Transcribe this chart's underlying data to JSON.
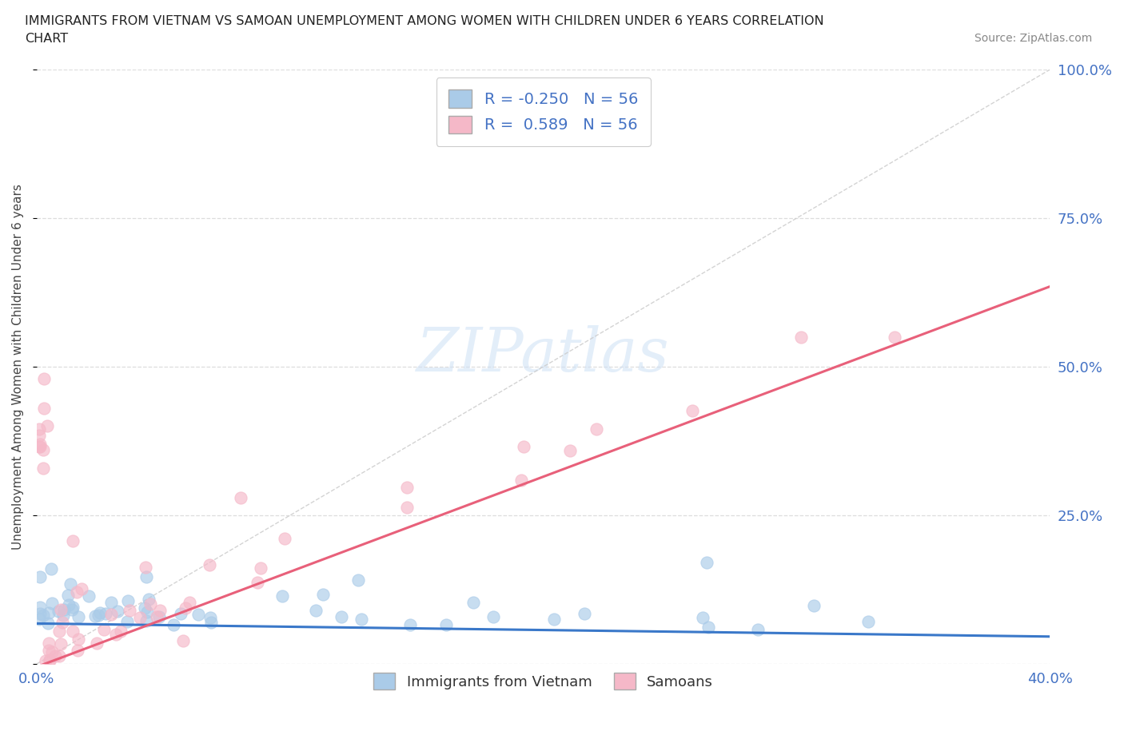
{
  "title_line1": "IMMIGRANTS FROM VIETNAM VS SAMOAN UNEMPLOYMENT AMONG WOMEN WITH CHILDREN UNDER 6 YEARS CORRELATION",
  "title_line2": "CHART",
  "source": "Source: ZipAtlas.com",
  "ylabel": "Unemployment Among Women with Children Under 6 years",
  "xlim": [
    0.0,
    0.4
  ],
  "ylim": [
    0.0,
    1.0
  ],
  "yticks": [
    0.0,
    0.25,
    0.5,
    0.75,
    1.0
  ],
  "yticklabels_right": [
    "",
    "25.0%",
    "50.0%",
    "75.0%",
    "100.0%"
  ],
  "xtick_labels": [
    "0.0%",
    "",
    "",
    "",
    "40.0%"
  ],
  "xtick_vals": [
    0.0,
    0.1,
    0.2,
    0.3,
    0.4
  ],
  "R_vietnam": -0.25,
  "R_samoan": 0.589,
  "N_vietnam": 56,
  "N_samoan": 56,
  "color_vietnam": "#aacbe8",
  "color_samoan": "#f5b8c8",
  "color_vietnam_line": "#3a78c9",
  "color_samoan_line": "#e8607a",
  "color_diag_line": "#cccccc",
  "watermark": "ZIPatlas",
  "background_color": "#ffffff",
  "grid_color": "#dddddd",
  "axis_label_color": "#4472c4",
  "title_color": "#222222",
  "source_color": "#888888",
  "slope_vietnam": -0.055,
  "intercept_vietnam": 0.068,
  "slope_samoan": 1.6,
  "intercept_samoan": -0.005
}
